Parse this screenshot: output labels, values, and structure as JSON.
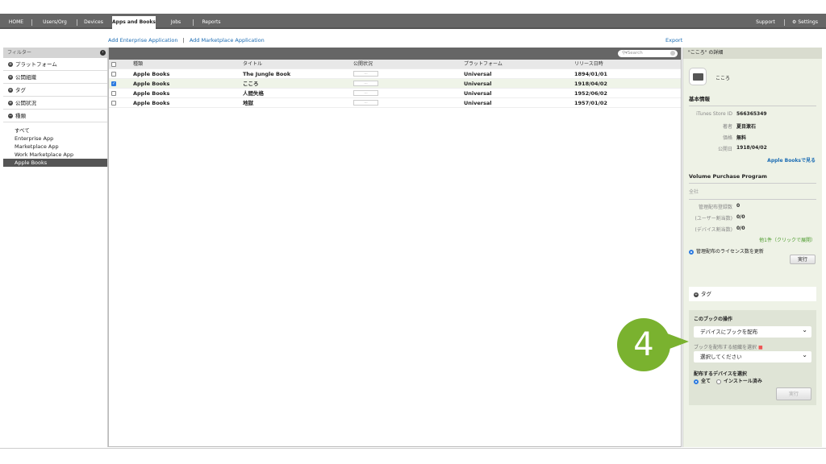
{
  "nav": {
    "tabs": [
      "HOME",
      "Users/Org",
      "Devices",
      "Apps and Books",
      "Jobs",
      "Reports"
    ],
    "active": "Apps and Books",
    "support": "Support",
    "settings": "Settings"
  },
  "actions": {
    "add_enterprise": "Add Enterprise Application",
    "separator": "|",
    "add_marketplace": "Add Marketplace Application",
    "export": "Export"
  },
  "filter": {
    "title": "フィルター",
    "sections": [
      "プラットフォーム",
      "公開組織",
      "タグ",
      "公開状況",
      "種類"
    ],
    "types": [
      "すべて",
      "Enterprise App",
      "Marketplace App",
      "Work Marketplace App",
      "Apple Books"
    ],
    "selected_type": "Apple Books"
  },
  "table": {
    "search_placeholder": "Search",
    "columns": [
      "種類",
      "タイトル",
      "公開状況",
      "プラットフォーム",
      "リリース日時"
    ],
    "rows": [
      {
        "type": "Apple Books",
        "title": "The Jungle Book",
        "status": "---",
        "platform": "Universal",
        "date": "1894/01/01",
        "checked": false
      },
      {
        "type": "Apple Books",
        "title": "こころ",
        "status": "---",
        "platform": "Universal",
        "date": "1918/04/02",
        "checked": true
      },
      {
        "type": "Apple Books",
        "title": "人間失格",
        "status": "---",
        "platform": "Universal",
        "date": "1952/06/02",
        "checked": false
      },
      {
        "type": "Apple Books",
        "title": "地獄",
        "status": "---",
        "platform": "Universal",
        "date": "1957/01/02",
        "checked": false
      }
    ]
  },
  "detail": {
    "header": "\"こころ\" の詳細",
    "name": "こころ",
    "basic_info": "基本情報",
    "itunes_id_label": "iTunes Store ID",
    "itunes_id": "566365349",
    "author_label": "著者",
    "author": "夏目漱石",
    "price_label": "価格",
    "price": "無料",
    "published_label": "公開日",
    "published": "1918/04/02",
    "store_link": "Apple Booksで見る",
    "vpp_title": "Volume Purchase Program",
    "vpp_org": "全社",
    "managed_label": "管理配布登録数",
    "managed": "0",
    "user_label": "(ユーザー割当数)",
    "user": "0/0",
    "device_label": "(デバイス割当数)",
    "device": "0/0",
    "more": "他1件（クリックで展開）",
    "update_license": "管理配布のライセンス数を更新",
    "run": "実行",
    "tags": "タグ",
    "op_title": "このブックの操作",
    "op_value": "デバイスにブックを配布",
    "org_label": "ブックを配布する組織を選択",
    "org_placeholder": "選択してください",
    "device_select_label": "配布するデバイスを選択",
    "all": "全て",
    "installed": "インストール済み",
    "run2": "実行"
  },
  "callout": {
    "number": "4",
    "color": "#7ab22f"
  }
}
